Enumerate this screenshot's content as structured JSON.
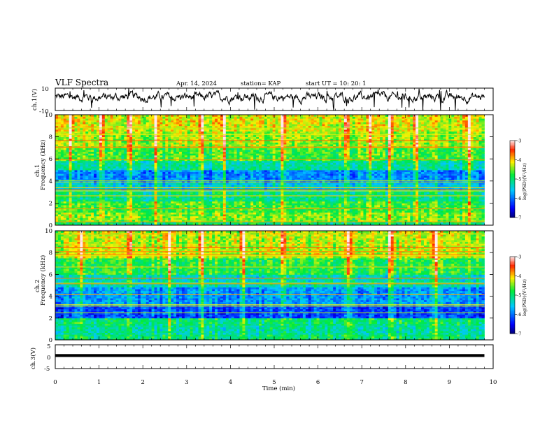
{
  "header": {
    "title": "VLF Spectra",
    "date": "Apr. 14, 2024",
    "station": "station= KAP",
    "start": "start  UT  =   10: 20: 1"
  },
  "colors": {
    "waveform": "#000000",
    "spectrogram_colormap": [
      "#000000",
      "#0000ff",
      "#00ffff",
      "#00ff00",
      "#ffff00",
      "#ff0000",
      "#ffffff"
    ]
  },
  "chart_data": [
    {
      "type": "line",
      "panel": "ch1-waveform",
      "ylabel": "ch.1(V)",
      "ylim": [
        -10,
        10
      ],
      "yticks": [
        "10",
        "-10"
      ],
      "xlim": [
        0,
        10
      ],
      "description_values": {
        "baseline": 2,
        "fluctuation": 4,
        "spike_max": 10,
        "spike_min": -10
      }
    },
    {
      "type": "heatmap",
      "panel": "ch1-spectrogram",
      "ylabel": "ch.1\nFrequency  (kHz)",
      "ylim": [
        0,
        10
      ],
      "yticks": [
        "0",
        "2",
        "4",
        "6",
        "8",
        "10"
      ],
      "xlim": [
        0,
        10
      ],
      "colorbar": {
        "label": "log(PSD)(V²/Hz)",
        "range": [
          -7,
          -3
        ],
        "ticks": [
          "-3",
          "-4",
          "-5",
          "-6",
          "-7"
        ]
      },
      "bands": [
        {
          "f": [
            0.0,
            0.4
          ],
          "level": -5.0
        },
        {
          "f": [
            0.4,
            1.2
          ],
          "level": -4.5
        },
        {
          "f": [
            1.2,
            2.2
          ],
          "level": -4.7
        },
        {
          "f": [
            2.2,
            3.2
          ],
          "level": -5.1
        },
        {
          "f": [
            3.2,
            3.8
          ],
          "level": -5.5
        },
        {
          "f": [
            3.8,
            5.0
          ],
          "level": -5.9
        },
        {
          "f": [
            5.0,
            5.8
          ],
          "level": -5.2
        },
        {
          "f": [
            5.8,
            7.0
          ],
          "level": -4.7
        },
        {
          "f": [
            7.0,
            8.5
          ],
          "level": -4.4
        },
        {
          "f": [
            8.5,
            10.0
          ],
          "level": -4.2
        }
      ],
      "bursts_min": [
        0.35,
        1.05,
        1.7,
        2.3,
        3.35,
        3.85,
        5.2,
        6.65,
        7.2,
        7.65,
        8.25,
        9.45
      ]
    },
    {
      "type": "heatmap",
      "panel": "ch2-spectrogram",
      "ylabel": "ch.2\nFrequency  (kHz)",
      "ylim": [
        0,
        10
      ],
      "yticks": [
        "0",
        "2",
        "4",
        "6",
        "8",
        "10"
      ],
      "xlim": [
        0,
        10
      ],
      "colorbar": {
        "label": "log(PSD)(V²/Hz)",
        "range": [
          -7,
          -3
        ],
        "ticks": [
          "-3",
          "-4",
          "-5",
          "-6",
          "-7"
        ]
      },
      "bands": [
        {
          "f": [
            0.0,
            0.5
          ],
          "level": -5.0
        },
        {
          "f": [
            0.5,
            1.3
          ],
          "level": -5.2
        },
        {
          "f": [
            1.3,
            2.0
          ],
          "level": -5.0
        },
        {
          "f": [
            2.0,
            3.2
          ],
          "level": -6.2
        },
        {
          "f": [
            3.2,
            4.8
          ],
          "level": -5.8
        },
        {
          "f": [
            4.8,
            6.0
          ],
          "level": -5.3
        },
        {
          "f": [
            6.0,
            7.5
          ],
          "level": -4.8
        },
        {
          "f": [
            7.5,
            10.0
          ],
          "level": -4.3
        }
      ],
      "bursts_min": [
        0.6,
        1.7,
        2.6,
        3.35,
        4.3,
        5.2,
        6.7,
        7.65,
        8.7
      ]
    },
    {
      "type": "line",
      "panel": "ch3-waveform",
      "ylabel": "ch.3(V)",
      "ylim": [
        -5,
        5
      ],
      "yticks": [
        "5",
        "0",
        "-5"
      ],
      "xlim": [
        0,
        9.8
      ],
      "description_values": {
        "baseline": 0.5,
        "amplitude": 0.6
      }
    }
  ],
  "x_axis": {
    "label": "Time  (min)",
    "ticks": [
      "0",
      "1",
      "2",
      "3",
      "4",
      "5",
      "6",
      "7",
      "8",
      "9",
      "10"
    ]
  }
}
